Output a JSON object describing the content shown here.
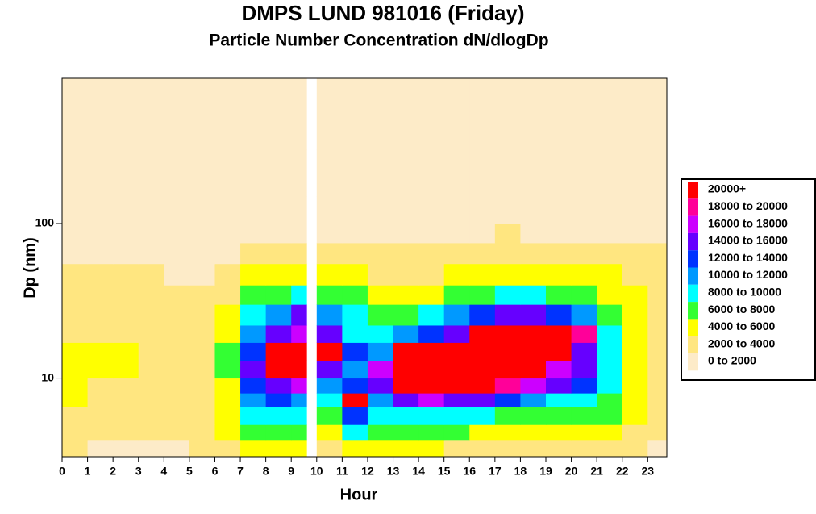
{
  "chart_data": {
    "type": "heatmap",
    "title": "DMPS LUND 981016 (Friday)",
    "subtitle": "Particle Number Concentration dN/dlogDp",
    "x_label": "Hour",
    "y_label": "Dp (nm)",
    "xlim": [
      0,
      23.75
    ],
    "xticks": [
      0,
      1,
      2,
      3,
      4,
      5,
      6,
      7,
      8,
      9,
      10,
      11,
      12,
      13,
      14,
      15,
      16,
      17,
      18,
      19,
      20,
      21,
      22,
      23
    ],
    "ylim": [
      3.1,
      870
    ],
    "yticks": [
      10,
      100
    ],
    "y_scale": "log",
    "x_edges": [
      0,
      1,
      2,
      3,
      4,
      5,
      6,
      7,
      8,
      9,
      9.6,
      10,
      11,
      12,
      13,
      14,
      15,
      16,
      17,
      18,
      19,
      20,
      21,
      22,
      23,
      23.75
    ],
    "y_edges": [
      3.1,
      4,
      5,
      6.5,
      8,
      10,
      13,
      17,
      22,
      30,
      40,
      55,
      75,
      100,
      150,
      300,
      870
    ],
    "z": [
      [
        3000,
        1000,
        1000,
        1000,
        1000,
        3000,
        3000,
        5000,
        5000,
        5000,
        null,
        3000,
        5000,
        5000,
        5000,
        5000,
        3000,
        3000,
        3000,
        3000,
        3000,
        3000,
        3000,
        3000,
        1000
      ],
      [
        3000,
        3000,
        3000,
        3000,
        3000,
        3000,
        5000,
        7000,
        7000,
        7000,
        null,
        5000,
        9000,
        7000,
        7000,
        7000,
        7000,
        5000,
        5000,
        5000,
        5000,
        5000,
        5000,
        3000,
        3000
      ],
      [
        3000,
        3000,
        3000,
        3000,
        3000,
        3000,
        5000,
        9000,
        9000,
        9000,
        null,
        7000,
        13000,
        9000,
        9000,
        9000,
        9000,
        9000,
        7000,
        7000,
        7000,
        7000,
        7000,
        5000,
        3000
      ],
      [
        5000,
        3000,
        3000,
        3000,
        3000,
        3000,
        5000,
        11000,
        13000,
        11000,
        null,
        9000,
        21000,
        11000,
        15000,
        17000,
        15000,
        15000,
        13000,
        11000,
        9000,
        9000,
        7000,
        5000,
        3000
      ],
      [
        5000,
        3000,
        3000,
        3000,
        3000,
        3000,
        5000,
        13000,
        15000,
        17000,
        null,
        11000,
        13000,
        15000,
        21000,
        21000,
        21000,
        21000,
        19000,
        17000,
        15000,
        13000,
        9000,
        5000,
        3000
      ],
      [
        5000,
        5000,
        5000,
        3000,
        3000,
        3000,
        7000,
        15000,
        21000,
        21000,
        null,
        15000,
        11000,
        17000,
        21000,
        21000,
        21000,
        21000,
        21000,
        21000,
        17000,
        15000,
        9000,
        5000,
        3000
      ],
      [
        5000,
        5000,
        5000,
        3000,
        3000,
        3000,
        7000,
        13000,
        21000,
        21000,
        null,
        21000,
        13000,
        11000,
        21000,
        21000,
        21000,
        21000,
        21000,
        21000,
        21000,
        15000,
        9000,
        5000,
        3000
      ],
      [
        3000,
        3000,
        3000,
        3000,
        3000,
        3000,
        5000,
        11000,
        15000,
        17000,
        null,
        15000,
        9000,
        9000,
        11000,
        13000,
        15000,
        21000,
        21000,
        21000,
        21000,
        19000,
        9000,
        5000,
        3000
      ],
      [
        3000,
        3000,
        3000,
        3000,
        3000,
        3000,
        5000,
        9000,
        11000,
        15000,
        null,
        11000,
        9000,
        7000,
        7000,
        9000,
        11000,
        13000,
        15000,
        15000,
        13000,
        11000,
        7000,
        5000,
        3000
      ],
      [
        3000,
        3000,
        3000,
        3000,
        3000,
        3000,
        3000,
        7000,
        7000,
        9000,
        null,
        7000,
        7000,
        5000,
        5000,
        5000,
        7000,
        7000,
        9000,
        9000,
        7000,
        7000,
        5000,
        5000,
        3000
      ],
      [
        3000,
        3000,
        3000,
        3000,
        1000,
        1000,
        3000,
        5000,
        5000,
        5000,
        null,
        5000,
        5000,
        3000,
        3000,
        3000,
        5000,
        5000,
        5000,
        5000,
        5000,
        5000,
        5000,
        3000,
        3000
      ],
      [
        1000,
        1000,
        1000,
        1000,
        1000,
        1000,
        1000,
        3000,
        3000,
        3000,
        null,
        3000,
        3000,
        3000,
        3000,
        3000,
        3000,
        3000,
        3000,
        3000,
        3000,
        3000,
        3000,
        3000,
        3000
      ],
      [
        1000,
        1000,
        1000,
        1000,
        1000,
        1000,
        1000,
        1000,
        1000,
        1000,
        null,
        1000,
        1000,
        1000,
        1000,
        1000,
        1000,
        1000,
        3000,
        1000,
        1000,
        1000,
        1000,
        1000,
        1000
      ],
      [
        1000,
        1000,
        1000,
        1000,
        1000,
        1000,
        1000,
        1000,
        1000,
        1000,
        null,
        1000,
        1000,
        1000,
        1000,
        1000,
        1000,
        1000,
        1000,
        1000,
        1000,
        1000,
        1000,
        1000,
        1000
      ],
      [
        1000,
        1000,
        1000,
        1000,
        1000,
        1000,
        1000,
        1000,
        1000,
        1000,
        null,
        1000,
        1000,
        1000,
        1000,
        1000,
        1000,
        1000,
        1000,
        1000,
        1000,
        1000,
        1000,
        1000,
        1000
      ],
      [
        1000,
        1000,
        1000,
        1000,
        1000,
        1000,
        1000,
        1000,
        1000,
        1000,
        null,
        1000,
        1000,
        1000,
        1000,
        1000,
        1000,
        1000,
        1000,
        1000,
        1000,
        1000,
        1000,
        1000,
        1000
      ]
    ],
    "legend": [
      {
        "label": "20000+",
        "level": 20000,
        "color": "#ff0000"
      },
      {
        "label": "18000 to 20000",
        "level": 18000,
        "color": "#ff0099"
      },
      {
        "label": "16000 to 18000",
        "level": 16000,
        "color": "#cc00ff"
      },
      {
        "label": "14000 to 16000",
        "level": 14000,
        "color": "#6600ff"
      },
      {
        "label": "12000 to 14000",
        "level": 12000,
        "color": "#0033ff"
      },
      {
        "label": "10000 to 12000",
        "level": 10000,
        "color": "#0099ff"
      },
      {
        "label": "8000 to 10000",
        "level": 8000,
        "color": "#00ffff"
      },
      {
        "label": "6000 to 8000",
        "level": 6000,
        "color": "#33ff33"
      },
      {
        "label": "4000 to 6000",
        "level": 4000,
        "color": "#ffff00"
      },
      {
        "label": "2000 to 4000",
        "level": 2000,
        "color": "#ffe680"
      },
      {
        "label": "0 to 2000",
        "level": 0,
        "color": "#fdebc8"
      }
    ]
  }
}
